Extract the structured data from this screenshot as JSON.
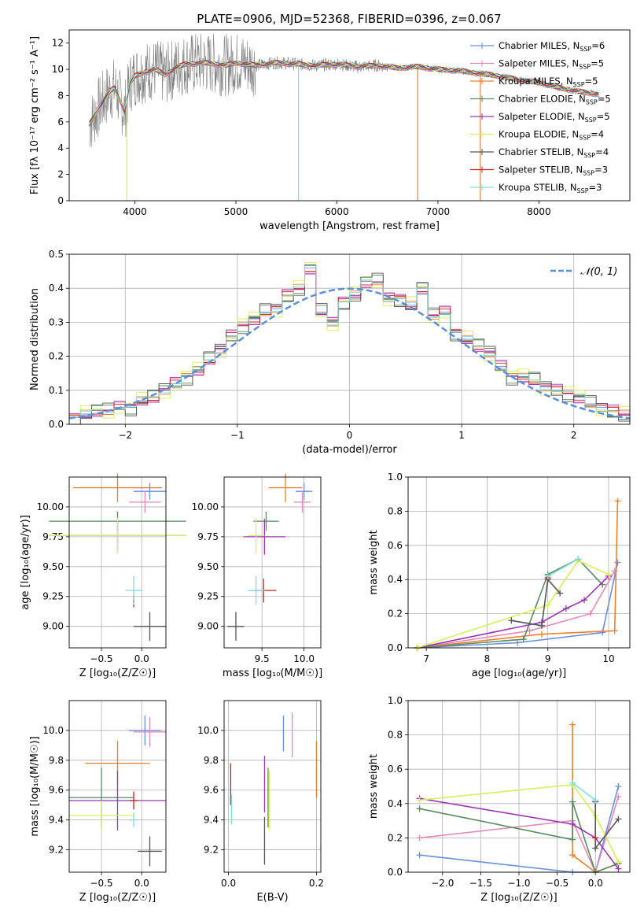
{
  "figure_title": "PLATE=0906, MJD=52368, FIBERID=0396, z=0.067",
  "colors": {
    "chabrier_miles": "#6a8fdc",
    "salpeter_miles": "#e48ab9",
    "kroupa_miles": "#e8822a",
    "chabrier_elodie": "#5a8a5e",
    "salpeter_elodie": "#9b35b5",
    "kroupa_elodie": "#d8ee5a",
    "chabrier_stelib": "#555555",
    "salpeter_stelib": "#c8201e",
    "kroupa_stelib": "#7fdcdc",
    "data": "#808080",
    "grid": "#b0b0b0",
    "gaussian": "#5b8fd6"
  },
  "chart_data": [
    {
      "id": "spectrum",
      "type": "line",
      "xlabel": "wavelength [Angstrom, rest frame]",
      "ylabel": "Flux [fλ 10⁻¹⁷ erg cm⁻² s⁻¹ A⁻¹]",
      "xlim": [
        3350,
        8900
      ],
      "ylim": [
        0,
        13
      ],
      "xticks": [
        "4000",
        "5000",
        "6000",
        "7000",
        "8000"
      ],
      "yticks": [
        "0",
        "2",
        "4",
        "6",
        "8",
        "10",
        "12"
      ],
      "grid": false,
      "legend_position": "right",
      "legend": [
        "Chabrier MILES, N_SSP=6",
        "Salpeter MILES, N_SSP=5",
        "Kroupa MILES, N_SSP=5",
        "Chabrier ELODIE, N_SSP=5",
        "Salpeter ELODIE, N_SSP=5",
        "Kroupa ELODIE, N_SSP=4",
        "Chabrier STELIB, N_SSP=4",
        "Salpeter STELIB, N_SSP=3",
        "Kroupa STELIB, N_SSP=3"
      ],
      "model_curve": {
        "x": [
          3550,
          3650,
          3750,
          3800,
          3900,
          3950,
          4000,
          4100,
          4200,
          4300,
          4400,
          4500,
          4700,
          4900,
          5000,
          5200,
          5400,
          5600,
          5800,
          6000,
          6200,
          6400,
          6600,
          6800,
          7000,
          7200,
          7400,
          7600,
          7800,
          8000,
          8200,
          8400,
          8600
        ],
        "y": [
          5.8,
          7.2,
          8.3,
          8.6,
          6.8,
          8.9,
          9.5,
          9.8,
          10.0,
          9.6,
          10.1,
          10.4,
          10.5,
          10.3,
          10.5,
          10.3,
          10.5,
          10.4,
          10.3,
          10.4,
          10.2,
          10.3,
          10.1,
          10.2,
          10.0,
          9.9,
          9.7,
          9.5,
          9.2,
          9.0,
          8.6,
          8.3,
          8.1
        ]
      },
      "spikes": [
        {
          "x": 3920,
          "y": 0
        },
        {
          "x": 5620,
          "y": 0
        },
        {
          "x": 6800,
          "y": 0
        },
        {
          "x": 7420,
          "y": 0
        }
      ]
    },
    {
      "id": "residual_histogram",
      "type": "line",
      "xlabel": "(data-model)/error",
      "ylabel": "Normed distribution",
      "xlim": [
        -2.5,
        2.5
      ],
      "ylim": [
        0,
        0.5
      ],
      "xticks": [
        "−2",
        "−1",
        "0",
        "1",
        "2"
      ],
      "yticks": [
        "0.0",
        "0.1",
        "0.2",
        "0.3",
        "0.4",
        "0.5"
      ],
      "grid": true,
      "legend_position": "top-right",
      "legend": [
        "𝒩(0, 1)"
      ],
      "bins": [
        -2.5,
        -2.4,
        -2.3,
        -2.2,
        -2.1,
        -2.0,
        -1.9,
        -1.8,
        -1.7,
        -1.6,
        -1.5,
        -1.4,
        -1.3,
        -1.2,
        -1.1,
        -1.0,
        -0.9,
        -0.8,
        -0.7,
        -0.6,
        -0.5,
        -0.4,
        -0.3,
        -0.2,
        -0.1,
        0.0,
        0.1,
        0.2,
        0.3,
        0.4,
        0.5,
        0.6,
        0.7,
        0.8,
        0.9,
        1.0,
        1.1,
        1.2,
        1.3,
        1.4,
        1.5,
        1.6,
        1.7,
        1.8,
        1.9,
        2.0,
        2.1,
        2.2,
        2.3,
        2.4
      ],
      "histogram_heights": [
        0.02,
        0.03,
        0.04,
        0.04,
        0.05,
        0.05,
        0.07,
        0.08,
        0.1,
        0.12,
        0.14,
        0.16,
        0.19,
        0.22,
        0.26,
        0.29,
        0.31,
        0.33,
        0.34,
        0.38,
        0.4,
        0.46,
        0.33,
        0.3,
        0.36,
        0.38,
        0.42,
        0.42,
        0.37,
        0.37,
        0.35,
        0.4,
        0.32,
        0.33,
        0.27,
        0.25,
        0.23,
        0.21,
        0.17,
        0.14,
        0.14,
        0.13,
        0.11,
        0.1,
        0.09,
        0.08,
        0.06,
        0.05,
        0.04,
        0.03
      ],
      "series_offsets": [
        0.0,
        0.015,
        -0.012,
        0.02,
        -0.018,
        0.025,
        -0.025,
        0.01,
        -0.008
      ],
      "gaussian": {
        "mean": 0,
        "sigma": 1
      }
    },
    {
      "id": "age_vs_Z",
      "type": "scatter",
      "xlabel": "Z [log₁₀(Z/Z☉)]",
      "ylabel": "age  [log₁₀(age/yr)]",
      "xlim": [
        -0.9,
        0.3
      ],
      "ylim": [
        8.82,
        10.25
      ],
      "xticks": [
        "−0.5",
        "0.0"
      ],
      "yticks": [
        "9.00",
        "9.25",
        "9.50",
        "9.75",
        "10.00"
      ],
      "grid": true,
      "points": [
        {
          "series": "chabrier_miles",
          "x": 0.1,
          "y": 10.13,
          "xerr": [
            0.2,
            0.2
          ],
          "yerr": [
            0.07,
            0.07
          ]
        },
        {
          "series": "salpeter_miles",
          "x": 0.04,
          "y": 10.04,
          "xerr": [
            0.2,
            0.2
          ],
          "yerr": [
            0.09,
            0.09
          ]
        },
        {
          "series": "kroupa_miles",
          "x": -0.3,
          "y": 10.16,
          "xerr": [
            0.55,
            0.55
          ],
          "yerr": [
            0.12,
            0.12
          ]
        },
        {
          "series": "chabrier_elodie",
          "x": -0.3,
          "y": 9.88,
          "xerr": [
            0.85,
            0.85
          ],
          "yerr": [
            0.08,
            0.08
          ]
        },
        {
          "series": "salpeter_elodie",
          "x": -0.3,
          "y": 9.76,
          "xerr": [
            0.85,
            0.85
          ],
          "yerr": [
            0.12,
            0.12
          ]
        },
        {
          "series": "kroupa_elodie",
          "x": -0.3,
          "y": 9.76,
          "xerr": [
            0.85,
            0.85
          ],
          "yerr": [
            0.15,
            0.15
          ]
        },
        {
          "series": "chabrier_stelib",
          "x": 0.1,
          "y": 9.0,
          "xerr": [
            0.2,
            0.2
          ],
          "yerr": [
            0.12,
            0.12
          ]
        },
        {
          "series": "salpeter_stelib",
          "x": -0.1,
          "y": 9.21,
          "xerr": [
            0.01,
            0.01
          ],
          "yerr": [
            0.05,
            0.05
          ]
        },
        {
          "series": "kroupa_stelib",
          "x": -0.1,
          "y": 9.3,
          "xerr": [
            0.1,
            0.1
          ],
          "yerr": [
            0.12,
            0.12
          ]
        }
      ]
    },
    {
      "id": "age_vs_mass",
      "type": "scatter",
      "xlabel": "mass [log₁₀(M/M☉)]",
      "ylabel": "",
      "xlim": [
        9.05,
        10.2
      ],
      "ylim": [
        8.82,
        10.25
      ],
      "xticks": [
        "9.5",
        "10.0"
      ],
      "yticks": [
        "9.00",
        "9.25",
        "9.50",
        "9.75",
        "10.00"
      ],
      "grid": true,
      "points": [
        {
          "series": "chabrier_miles",
          "x": 10.0,
          "y": 10.13,
          "xerr": [
            0.1,
            0.1
          ],
          "yerr": [
            0.07,
            0.07
          ]
        },
        {
          "series": "salpeter_miles",
          "x": 9.98,
          "y": 10.04,
          "xerr": [
            0.1,
            0.1
          ],
          "yerr": [
            0.09,
            0.09
          ]
        },
        {
          "series": "kroupa_miles",
          "x": 9.78,
          "y": 10.16,
          "xerr": [
            0.2,
            0.2
          ],
          "yerr": [
            0.12,
            0.12
          ]
        },
        {
          "series": "chabrier_elodie",
          "x": 9.55,
          "y": 9.88,
          "xerr": [
            0.15,
            0.15
          ],
          "yerr": [
            0.08,
            0.08
          ]
        },
        {
          "series": "salpeter_elodie",
          "x": 9.53,
          "y": 9.75,
          "xerr": [
            0.25,
            0.25
          ],
          "yerr": [
            0.15,
            0.15
          ]
        },
        {
          "series": "kroupa_elodie",
          "x": 9.43,
          "y": 9.76,
          "xerr": [
            0.1,
            0.1
          ],
          "yerr": [
            0.15,
            0.15
          ]
        },
        {
          "series": "chabrier_stelib",
          "x": 9.19,
          "y": 9.0,
          "xerr": [
            0.1,
            0.1
          ],
          "yerr": [
            0.12,
            0.12
          ]
        },
        {
          "series": "salpeter_stelib",
          "x": 9.52,
          "y": 9.3,
          "xerr": [
            0.15,
            0.15
          ],
          "yerr": [
            0.1,
            0.1
          ]
        },
        {
          "series": "kroupa_stelib",
          "x": 9.43,
          "y": 9.3,
          "xerr": [
            0.1,
            0.1
          ],
          "yerr": [
            0.12,
            0.12
          ]
        }
      ]
    },
    {
      "id": "mass_weight_vs_age",
      "type": "line",
      "xlabel": "age  [log₁₀(age/yr)]",
      "ylabel": "mass weight",
      "xlim": [
        6.7,
        10.35
      ],
      "ylim": [
        0,
        1
      ],
      "xticks": [
        "7",
        "8",
        "9",
        "10"
      ],
      "yticks": [
        "0.0",
        "0.2",
        "0.4",
        "0.6",
        "0.8",
        "1.0"
      ],
      "grid": true,
      "series": [
        {
          "name": "chabrier_miles",
          "x": [
            6.85,
            8.5,
            9.9,
            10.15
          ],
          "y": [
            0.0,
            0.03,
            0.09,
            0.5
          ]
        },
        {
          "name": "salpeter_miles",
          "x": [
            6.85,
            8.7,
            9.7,
            10.1
          ],
          "y": [
            0.0,
            0.1,
            0.2,
            0.45
          ]
        },
        {
          "name": "kroupa_miles",
          "x": [
            6.85,
            8.9,
            10.1,
            10.15
          ],
          "y": [
            0.0,
            0.08,
            0.1,
            0.86
          ]
        },
        {
          "name": "chabrier_elodie",
          "x": [
            6.85,
            8.6,
            9.0,
            9.5,
            9.9
          ],
          "y": [
            0.0,
            0.05,
            0.43,
            0.52,
            0.37
          ]
        },
        {
          "name": "salpeter_elodie",
          "x": [
            6.85,
            8.9,
            9.3,
            9.6,
            10.0
          ],
          "y": [
            0.0,
            0.15,
            0.23,
            0.28,
            0.42
          ]
        },
        {
          "name": "kroupa_elodie",
          "x": [
            6.85,
            9.0,
            9.5,
            10.0
          ],
          "y": [
            0.0,
            0.25,
            0.51,
            0.43
          ]
        },
        {
          "name": "chabrier_stelib",
          "x": [
            8.4,
            8.9,
            9.0,
            9.2
          ],
          "y": [
            0.16,
            0.13,
            0.4,
            0.32
          ]
        },
        {
          "name": "salpeter_stelib",
          "x": [
            9.0
          ],
          "y": [
            0.41
          ]
        },
        {
          "name": "kroupa_stelib",
          "x": [
            9.0,
            9.5
          ],
          "y": [
            0.42,
            0.52
          ]
        }
      ]
    },
    {
      "id": "mass_vs_Z",
      "type": "scatter",
      "xlabel": "Z [log₁₀(Z/Z☉)]",
      "ylabel": "mass [log₁₀(M/M☉)]",
      "xlim": [
        -0.9,
        0.3
      ],
      "ylim": [
        9.05,
        10.2
      ],
      "xticks": [
        "−0.5",
        "0.0"
      ],
      "yticks": [
        "9.2",
        "9.4",
        "9.6",
        "9.8",
        "10.0"
      ],
      "grid": true,
      "points": [
        {
          "series": "chabrier_miles",
          "x": 0.04,
          "y": 10.0,
          "xerr": [
            0.2,
            0.2
          ],
          "yerr": [
            0.1,
            0.1
          ]
        },
        {
          "series": "salpeter_miles",
          "x": 0.1,
          "y": 9.99,
          "xerr": [
            0.2,
            0.2
          ],
          "yerr": [
            0.1,
            0.1
          ]
        },
        {
          "series": "kroupa_miles",
          "x": -0.3,
          "y": 9.78,
          "xerr": [
            0.4,
            0.4
          ],
          "yerr": [
            0.15,
            0.15
          ]
        },
        {
          "series": "chabrier_elodie",
          "x": -0.5,
          "y": 9.55,
          "xerr": [
            0.4,
            0.4
          ],
          "yerr": [
            0.2,
            0.2
          ]
        },
        {
          "series": "salpeter_elodie",
          "x": -0.3,
          "y": 9.53,
          "xerr": [
            0.6,
            0.6
          ],
          "yerr": [
            0.2,
            0.2
          ]
        },
        {
          "series": "kroupa_elodie",
          "x": -0.5,
          "y": 9.43,
          "xerr": [
            0.4,
            0.4
          ],
          "yerr": [
            0.1,
            0.1
          ]
        },
        {
          "series": "chabrier_stelib",
          "x": 0.1,
          "y": 9.19,
          "xerr": [
            0.15,
            0.15
          ],
          "yerr": [
            0.1,
            0.1
          ]
        },
        {
          "series": "salpeter_stelib",
          "x": -0.1,
          "y": 9.53,
          "xerr": [
            0.05,
            0.05
          ],
          "yerr": [
            0.06,
            0.06
          ]
        },
        {
          "series": "kroupa_stelib",
          "x": -0.1,
          "y": 9.4,
          "xerr": [
            0.05,
            0.05
          ],
          "yerr": [
            0.05,
            0.05
          ]
        }
      ]
    },
    {
      "id": "mass_vs_EBV",
      "type": "scatter",
      "xlabel": "E(B-V)",
      "ylabel": "",
      "xlim": [
        -0.01,
        0.21
      ],
      "ylim": [
        9.05,
        10.2
      ],
      "xticks": [
        "0.0",
        "0.2"
      ],
      "yticks": [
        "9.2",
        "9.4",
        "9.6",
        "9.8",
        "10.0"
      ],
      "grid": true,
      "points": [
        {
          "series": "chabrier_miles",
          "x": 0.125,
          "y": 9.98,
          "yerr": [
            0.12,
            0.12
          ]
        },
        {
          "series": "salpeter_miles",
          "x": 0.145,
          "y": 9.97,
          "yerr": [
            0.15,
            0.15
          ]
        },
        {
          "series": "kroupa_miles",
          "x": 0.2,
          "y": 9.74,
          "yerr": [
            0.19,
            0.19
          ]
        },
        {
          "series": "chabrier_elodie",
          "x": 0.09,
          "y": 9.55,
          "yerr": [
            0.2,
            0.2
          ]
        },
        {
          "series": "salpeter_elodie",
          "x": 0.082,
          "y": 9.64,
          "yerr": [
            0.19,
            0.19
          ]
        },
        {
          "series": "kroupa_elodie",
          "x": 0.093,
          "y": 9.53,
          "yerr": [
            0.2,
            0.2
          ]
        },
        {
          "series": "chabrier_stelib",
          "x": 0.082,
          "y": 9.26,
          "yerr": [
            0.16,
            0.16
          ]
        },
        {
          "series": "salpeter_stelib",
          "x": 0.005,
          "y": 9.64,
          "yerr": [
            0.14,
            0.14
          ]
        },
        {
          "series": "kroupa_stelib",
          "x": 0.007,
          "y": 9.47,
          "yerr": [
            0.1,
            0.1
          ]
        }
      ]
    },
    {
      "id": "mass_weight_vs_Z",
      "type": "line",
      "xlabel": "Z [log₁₀(Z/Z☉)]",
      "ylabel": "mass weight",
      "xlim": [
        -2.45,
        0.45
      ],
      "ylim": [
        0,
        1
      ],
      "xticks": [
        "−2.0",
        "−1.5",
        "−1.0",
        "−0.5",
        "0.0"
      ],
      "yticks": [
        "0.0",
        "0.2",
        "0.4",
        "0.6",
        "0.8",
        "1.0"
      ],
      "grid": true,
      "series": [
        {
          "name": "chabrier_miles",
          "x": [
            -2.3,
            -0.3,
            0.0,
            0.3
          ],
          "y": [
            0.1,
            0.0,
            0.0,
            0.5
          ]
        },
        {
          "name": "salpeter_miles",
          "x": [
            -2.3,
            -0.3,
            0.0,
            0.3
          ],
          "y": [
            0.2,
            0.3,
            0.0,
            0.44
          ]
        },
        {
          "name": "kroupa_miles",
          "x": [
            -0.3,
            -0.3,
            0.0,
            0.3
          ],
          "y": [
            0.86,
            0.1,
            0.0,
            0.05
          ]
        },
        {
          "name": "chabrier_elodie",
          "x": [
            -2.3,
            -0.3,
            -0.3,
            0.0,
            0.3
          ],
          "y": [
            0.37,
            0.19,
            0.41,
            0.0,
            0.05
          ]
        },
        {
          "name": "salpeter_elodie",
          "x": [
            -2.3,
            -0.3,
            0.0,
            0.3
          ],
          "y": [
            0.43,
            0.28,
            0.2,
            0.02
          ]
        },
        {
          "name": "kroupa_elodie",
          "x": [
            -2.3,
            -0.3,
            0.0,
            0.3
          ],
          "y": [
            0.42,
            0.51,
            0.33,
            0.06
          ]
        },
        {
          "name": "chabrier_stelib",
          "x": [
            0.0,
            0.0,
            0.3
          ],
          "y": [
            0.41,
            0.14,
            0.31
          ]
        },
        {
          "name": "salpeter_stelib",
          "x": [
            0.0
          ],
          "y": [
            0.2
          ]
        },
        {
          "name": "kroupa_stelib",
          "x": [
            -0.3,
            0.0
          ],
          "y": [
            0.52,
            0.42
          ]
        }
      ]
    }
  ]
}
